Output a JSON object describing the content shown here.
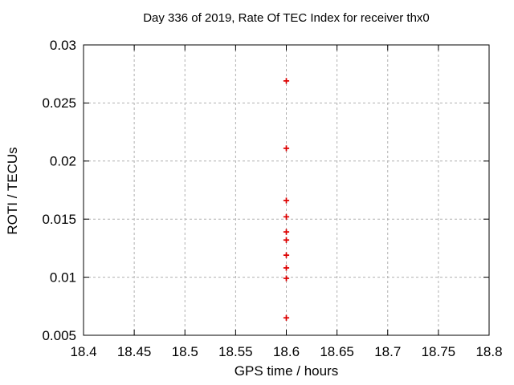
{
  "window": {
    "background": "#ffffff"
  },
  "chart_data": {
    "type": "scatter",
    "title": "Day 336 of 2019, Rate Of TEC Index for receiver thx0",
    "xlabel": "GPS time / hours",
    "ylabel": "ROTI / TECUs",
    "xlim": [
      18.4,
      18.8
    ],
    "ylim": [
      0.005,
      0.03
    ],
    "x_ticks": [
      18.4,
      18.45,
      18.5,
      18.55,
      18.6,
      18.65,
      18.7,
      18.75,
      18.8
    ],
    "x_tick_labels": [
      "18.4",
      "18.45",
      "18.5",
      "18.55",
      "18.6",
      "18.65",
      "18.7",
      "18.75",
      "18.8"
    ],
    "y_ticks": [
      0.005,
      0.01,
      0.015,
      0.02,
      0.025,
      0.03
    ],
    "y_tick_labels": [
      "0.005",
      "0.01",
      "0.015",
      "0.02",
      "0.025",
      "0.03"
    ],
    "grid": true,
    "grid_style": "dashed",
    "legend_position": "none",
    "series": [
      {
        "name": "ROTI",
        "marker": "plus",
        "color": "#dd0000",
        "x": [
          18.6,
          18.6,
          18.6,
          18.6,
          18.6,
          18.6,
          18.6,
          18.6,
          18.6,
          18.6
        ],
        "y": [
          0.0269,
          0.0211,
          0.0166,
          0.0152,
          0.0139,
          0.0132,
          0.0119,
          0.0108,
          0.0099,
          0.0065
        ]
      }
    ]
  },
  "colors": {
    "marker": "#dd0000",
    "grid": "#b0b0b0",
    "axis": "#000000",
    "text": "#000000",
    "background": "#ffffff"
  }
}
